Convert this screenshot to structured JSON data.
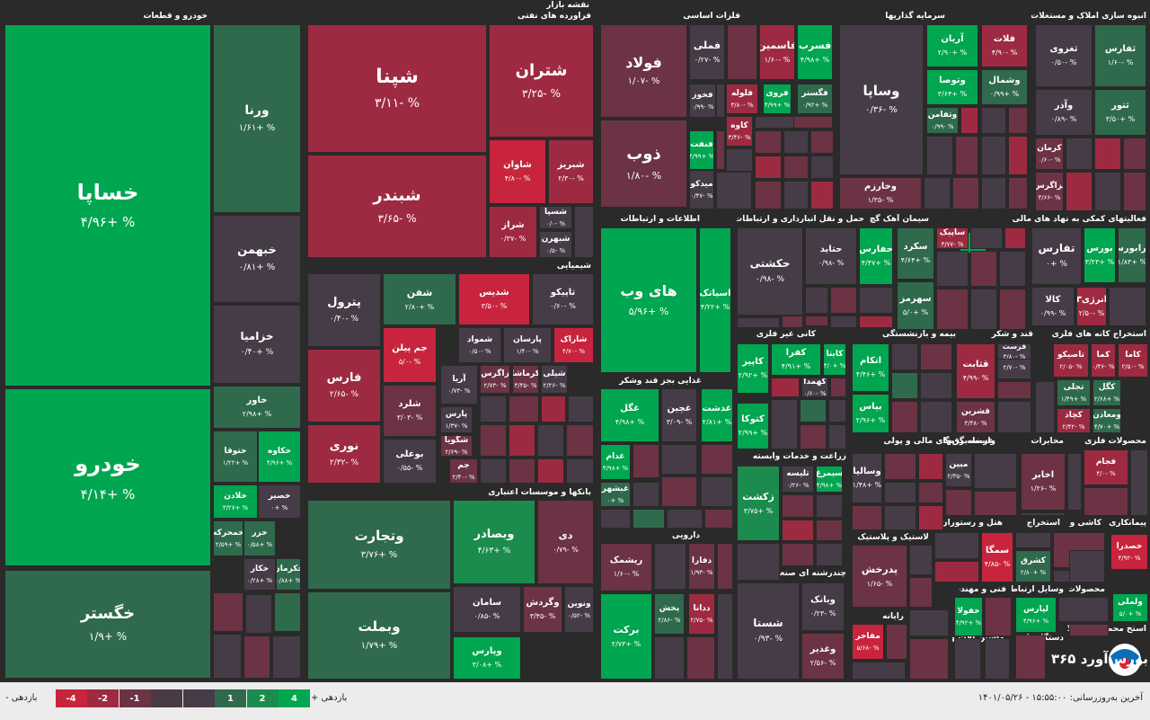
{
  "page_title": "نقشه بازار",
  "sectors": [
    {
      "label": "خودرو و قطعات"
    },
    {
      "label": "فراورده های نفتی"
    },
    {
      "label": "فلزات اساسی"
    },
    {
      "label": "سرمایه گذاریها"
    },
    {
      "label": "انبوه سازی املاک و مستغلات"
    },
    {
      "label": "شیمیایی"
    },
    {
      "label": "اطلاعات و ارتباطات"
    },
    {
      "label": "حمل و نقل انبارداری و ارتباطات"
    },
    {
      "label": "سیمان آهک گچ"
    },
    {
      "label": "فعالیتهای کمکی به نهاد های مالی"
    },
    {
      "label": "بانکها و موسسات اعتباری"
    },
    {
      "label": "کانی غیر فلزی"
    },
    {
      "label": "بیمه و بازنشستگی"
    },
    {
      "label": "قند و شکر"
    },
    {
      "label": "استخراج کانه های فلزی"
    },
    {
      "label": "غذایی بجز قند وشکر"
    },
    {
      "label": "زراعت و خدمات وابسته"
    },
    {
      "label": "واسطه گریهای مالی و پولی"
    },
    {
      "label": "عرضه برق،گاز،بخار"
    },
    {
      "label": "مخابرات"
    },
    {
      "label": "محصولات فلزی"
    },
    {
      "label": "دارویی"
    },
    {
      "label": "لاستیک و پلاستیک"
    },
    {
      "label": "هتل و رستوران"
    },
    {
      "label": "استخراج"
    },
    {
      "label": "کاشی و"
    },
    {
      "label": "پیمانکاری"
    },
    {
      "label": "چندرشته ای صنعتی"
    },
    {
      "label": "رایانه"
    },
    {
      "label": "فنی و مهندسی"
    },
    {
      "label": "وسایل ارتباطی"
    },
    {
      "label": "محصولات"
    },
    {
      "label": "ماشین آلات و"
    },
    {
      "label": "دستگاههای"
    },
    {
      "label": "استخ محصر محصولات"
    }
  ],
  "tiles": [
    {
      "name": "خساپا",
      "pct": "% +۴/۹۶"
    },
    {
      "name": "خودرو",
      "pct": "% +۴/۱۴"
    },
    {
      "name": "خگستر",
      "pct": "% +۱/۹"
    },
    {
      "name": "ورنا",
      "pct": "% +۱/۶۱"
    },
    {
      "name": "خبهمن",
      "pct": "% +۰/۸۱"
    },
    {
      "name": "خزامیا",
      "pct": "% +۰/۴۰"
    },
    {
      "name": "خاور",
      "pct": "% +۲/۹۸"
    },
    {
      "name": "خکاوه",
      "pct": "% +۴/۹۶"
    },
    {
      "name": "ختوقا",
      "pct": "% +۱/۲۲"
    },
    {
      "name": "خصیر",
      "pct": "% +۰"
    },
    {
      "name": "خلادن",
      "pct": "% +۳/۲۷"
    },
    {
      "name": "خزر",
      "pct": "% +۰/۵۸"
    },
    {
      "name": "خمحرکه",
      "pct": "% +۲/۵۹"
    },
    {
      "name": "خکار",
      "pct": "% +۰/۲۸"
    },
    {
      "name": "خکرمان",
      "pct": "% +۰/۸۸"
    },
    {
      "name": "شپنا",
      "pct": "% -۳/۱۱"
    },
    {
      "name": "شتران",
      "pct": "% -۳/۲۵"
    },
    {
      "name": "شبندر",
      "pct": "% -۳/۶۵"
    },
    {
      "name": "شاوان",
      "pct": "% -۴/۸۰"
    },
    {
      "name": "شبریز",
      "pct": "% -۲/۳۰"
    },
    {
      "name": "شراز",
      "pct": "% -۰/۳۷"
    },
    {
      "name": "شسپا",
      "pct": "% -۰/۰"
    },
    {
      "name": "شبهرن",
      "pct": "% -۰/۵"
    },
    {
      "name": "فولاد",
      "pct": "% -۱/۰۷"
    },
    {
      "name": "ذوب",
      "pct": "% -۱/۸۰"
    },
    {
      "name": "فملی",
      "pct": "% -۰/۲۷"
    },
    {
      "name": "فاسمین",
      "pct": "% -۱/۶۰"
    },
    {
      "name": "فسرب",
      "pct": "% +۴/۹۸"
    },
    {
      "name": "فخوز",
      "pct": "% -۰/۹۹"
    },
    {
      "name": "فلوله",
      "pct": "% -۳/۸۰"
    },
    {
      "name": "فروی",
      "pct": "% +۴/۹۹"
    },
    {
      "name": "فگستر",
      "pct": "% +۰/۹۲"
    },
    {
      "name": "کاوه",
      "pct": "% -۳/۴۶"
    },
    {
      "name": "فنفت",
      "pct": "% +۴/۹۹"
    },
    {
      "name": "میدکو",
      "pct": "% -۰/۴۷"
    },
    {
      "name": "وساپا",
      "pct": "% -۰/۳۶"
    },
    {
      "name": "آریان",
      "pct": "% +۲/۹۰"
    },
    {
      "name": "فلات",
      "pct": "% -۴/۹۰"
    },
    {
      "name": "وتوصا",
      "pct": "% +۳/۶۴"
    },
    {
      "name": "وشمال",
      "pct": "% +۰/۹۹"
    },
    {
      "name": "وتفامن",
      "pct": "% -۰/۹۹"
    },
    {
      "name": "وخارزم",
      "pct": "% -۱/۳۵"
    },
    {
      "name": "ثفارس",
      "pct": "% -۱/۶۰"
    },
    {
      "name": "ثغزوی",
      "pct": "% -۰/۵۰"
    },
    {
      "name": "ثتور",
      "pct": "% +۳/۵۰"
    },
    {
      "name": "وآذر",
      "pct": "% -۰/۸۹"
    },
    {
      "name": "کرمان",
      "pct": "% -۰/۶۰"
    },
    {
      "name": "ثزاگرس",
      "pct": "% -۳/۶۶"
    },
    {
      "name": "های وب",
      "pct": "% +۵/۹۶"
    },
    {
      "name": "اسیاتک",
      "pct": "% +۴/۲۲"
    },
    {
      "name": "حکشتی",
      "pct": "% -۰/۹۸"
    },
    {
      "name": "حتاید",
      "pct": "% -۰/۹۸"
    },
    {
      "name": "حفارس",
      "pct": "% +۴/۴۷"
    },
    {
      "name": "سکرد",
      "pct": "% +۴/۶۴"
    },
    {
      "name": "ساپیک",
      "pct": "% -۳/۷۷"
    },
    {
      "name": "سهرمز",
      "pct": "% +۵/۰"
    },
    {
      "name": "تفارس",
      "pct": "% +۰"
    },
    {
      "name": "بورس",
      "pct": "% +۳/۲۳"
    },
    {
      "name": "فرابورس",
      "pct": "% +۱/۸۳"
    },
    {
      "name": "کالا",
      "pct": "% -۰/۹۹"
    },
    {
      "name": "انرژی۳",
      "pct": "% -۲/۵۰"
    },
    {
      "name": "پترول",
      "pct": "% -۰/۴۰"
    },
    {
      "name": "شفن",
      "pct": "% +۲/۸۰"
    },
    {
      "name": "شدیس",
      "pct": "% -۳/۵۰"
    },
    {
      "name": "تاپیکو",
      "pct": "% -۰/۶۰"
    },
    {
      "name": "فارس",
      "pct": "% -۲/۶۵"
    },
    {
      "name": "جم پیلن",
      "pct": "% -۵/۰"
    },
    {
      "name": "شمواد",
      "pct": "% -۰/۵۰"
    },
    {
      "name": "پارسان",
      "pct": "% -۱/۴۰"
    },
    {
      "name": "شاراک",
      "pct": "% -۴/۷۰"
    },
    {
      "name": "آریا",
      "pct": "% -۰/۷۳"
    },
    {
      "name": "زاگرس",
      "pct": "% -۲/۷۳"
    },
    {
      "name": "کرماشا",
      "pct": "% -۳/۴۵"
    },
    {
      "name": "شیلی",
      "pct": "% -۲/۲۶"
    },
    {
      "name": "شلرد",
      "pct": "% -۳/۰۳"
    },
    {
      "name": "پارس",
      "pct": "% -۱/۳۷"
    },
    {
      "name": "شگویا",
      "pct": "% -۲/۶۹"
    },
    {
      "name": "نوری",
      "pct": "% -۲/۳۲"
    },
    {
      "name": "بوعلی",
      "pct": "% -۰/۵۵"
    },
    {
      "name": "جم",
      "pct": "% -۲/۴۰"
    },
    {
      "name": "وتجارت",
      "pct": "% +۳/۷۶"
    },
    {
      "name": "وبصادر",
      "pct": "% +۴/۶۳"
    },
    {
      "name": "دی",
      "pct": "% -۰/۷۹"
    },
    {
      "name": "وبملت",
      "pct": "% +۱/۷۹"
    },
    {
      "name": "سامان",
      "pct": "% -۰/۸۵"
    },
    {
      "name": "وگردش",
      "pct": "% -۳/۴۵"
    },
    {
      "name": "ونوین",
      "pct": "% -۰/۵۲"
    },
    {
      "name": "وپارس",
      "pct": "% +۳/۰۸"
    },
    {
      "name": "کاپیز",
      "pct": "% +۲/۹۲"
    },
    {
      "name": "کفرا",
      "pct": "% +۴/۹۱"
    },
    {
      "name": "کایتا",
      "pct": "% +۳/۰"
    },
    {
      "name": "کهمدا",
      "pct": "% -۰/۶۰"
    },
    {
      "name": "کتوکا",
      "pct": "% +۲/۹۹"
    },
    {
      "name": "اتکام",
      "pct": "% +۴/۴۶"
    },
    {
      "name": "بپاس",
      "pct": "% +۲/۹۶"
    },
    {
      "name": "قثابت",
      "pct": "% -۴/۹۹"
    },
    {
      "name": "قصفها",
      "pct": "% -۲/۷۰"
    },
    {
      "name": "قشرین",
      "pct": "% -۴/۳۸"
    },
    {
      "name": "قرست",
      "pct": "% -۳/۸۰"
    },
    {
      "name": "تاصیکو",
      "pct": "% -۲/۰۵"
    },
    {
      "name": "کما",
      "pct": "% -۰/۴۶"
    },
    {
      "name": "کاما",
      "pct": "% -۲/۵۰"
    },
    {
      "name": "تجلی",
      "pct": "% +۱/۴۹"
    },
    {
      "name": "کگل",
      "pct": "% +۲/۶۸"
    },
    {
      "name": "کچاد",
      "pct": "% -۲/۴۲"
    },
    {
      "name": "ومعادن",
      "pct": "% +۴/۷۰"
    },
    {
      "name": "غگل",
      "pct": "% +۴/۹۸"
    },
    {
      "name": "غچین",
      "pct": "% -۳/۰۹"
    },
    {
      "name": "غدشت",
      "pct": "% +۲/۸۱"
    },
    {
      "name": "غدام",
      "pct": "% +۴/۹۸"
    },
    {
      "name": "غبشهر",
      "pct": "% +۰"
    },
    {
      "name": "زکشت",
      "pct": "% +۳/۷۵"
    },
    {
      "name": "تلیسه",
      "pct": "% -۰/۲۶"
    },
    {
      "name": "سیمرغ",
      "pct": "% +۴/۹۸"
    },
    {
      "name": "وسالیا",
      "pct": "% +۱/۴۸"
    },
    {
      "name": "مبین",
      "pct": "% -۲/۳۵"
    },
    {
      "name": "اخابر",
      "pct": "% -۱/۲۶"
    },
    {
      "name": "فجام",
      "pct": "% -۴/۰"
    },
    {
      "name": "ریشمک",
      "pct": "% -۱/۶۰"
    },
    {
      "name": "دفارا",
      "pct": "% -۱/۹۳"
    },
    {
      "name": "برکت",
      "pct": "% +۲/۷۳"
    },
    {
      "name": "پخش",
      "pct": "% -۲/۸۶"
    },
    {
      "name": "ددانا",
      "pct": "% -۲/۷۵"
    },
    {
      "name": "پدرخش",
      "pct": "% -۱/۶۵"
    },
    {
      "name": "سمگا",
      "pct": "% -۴/۸۵"
    },
    {
      "name": "کشرق",
      "pct": "% +۲/۸۰"
    },
    {
      "name": "خصدرا",
      "pct": "% -۴/۹۲"
    },
    {
      "name": "شستا",
      "pct": "% -۰/۹۳"
    },
    {
      "name": "وبانک",
      "pct": "% -۰/۲۳"
    },
    {
      "name": "وغدیر",
      "pct": "% -۲/۵۶"
    },
    {
      "name": "مفاخر",
      "pct": "% -۵/۶۸"
    },
    {
      "name": "خفولا",
      "pct": "% +۴/۹۲"
    },
    {
      "name": "لپارس",
      "pct": "% +۴/۹۶"
    },
    {
      "name": "ولملی",
      "pct": "% +۵/۰"
    }
  ],
  "legend": {
    "increase_label": "بازدهی +",
    "decrease_label": "بازدهی -",
    "swatches": [
      {
        "label": "4",
        "color": "#00a650"
      },
      {
        "label": "2",
        "color": "#1b8c4e"
      },
      {
        "label": "1",
        "color": "#2f6a4d"
      },
      {
        "label": "",
        "color": "#463c47"
      },
      {
        "label": "",
        "color": "#4a3a45"
      },
      {
        "label": "-1",
        "color": "#6b3344"
      },
      {
        "label": "-2",
        "color": "#9e2a41"
      },
      {
        "label": "-4",
        "color": "#c8243e"
      }
    ]
  },
  "footer": {
    "last_update": "آخرین به‌روزرسانی: ۱۵:۵۵:۰۰ - ۱۴۰۱/۰۵/۲۶"
  },
  "brand": {
    "name": "بورس‌آورد ۳۶۵"
  }
}
